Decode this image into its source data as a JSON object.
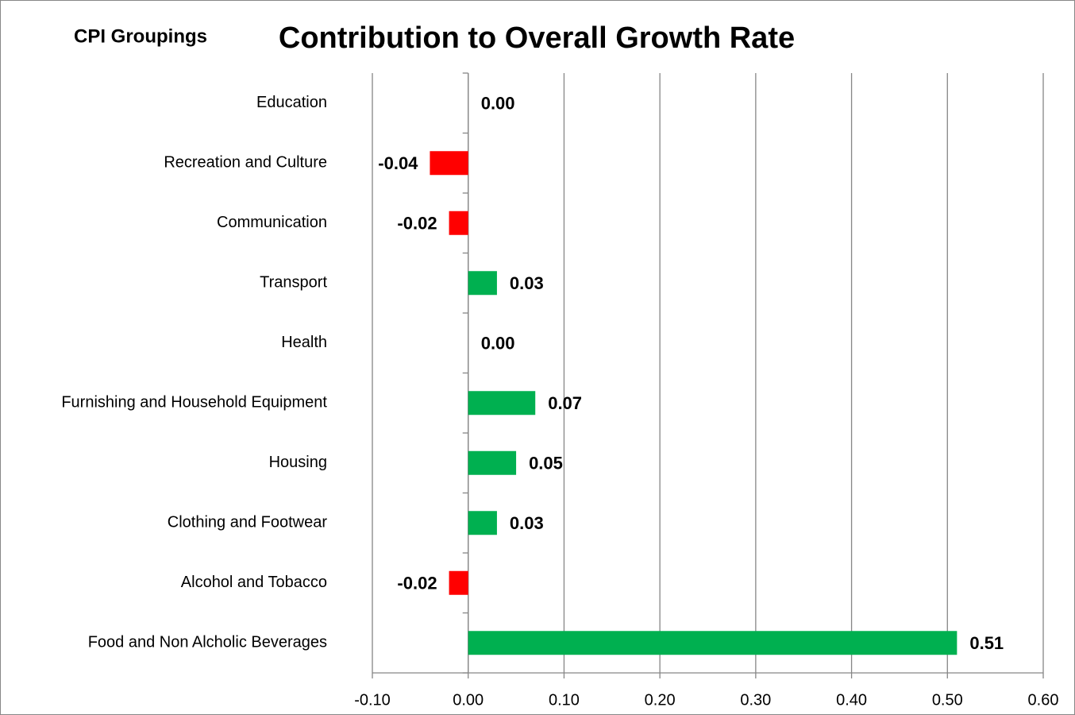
{
  "chart_data": {
    "type": "hbar",
    "title": "Contribution to Overall Growth Rate",
    "y_axis_title": "CPI Groupings",
    "categories": [
      "Education",
      "Recreation and Culture",
      "Communication",
      "Transport",
      "Health",
      "Furnishing and Household Equipment",
      "Housing",
      "Clothing and Footwear",
      "Alcohol and Tobacco",
      "Food and Non Alcholic Beverages"
    ],
    "values": [
      0.0,
      -0.04,
      -0.02,
      0.03,
      0.0,
      0.07,
      0.05,
      0.03,
      -0.02,
      0.51
    ],
    "value_labels": [
      "0.00",
      "-0.04",
      "-0.02",
      "0.03",
      "0.00",
      "0.07",
      "0.05",
      "0.03",
      "-0.02",
      "0.51"
    ],
    "positive_color": "#00b050",
    "negative_color": "#ff0000",
    "xlim": [
      -0.1,
      0.6
    ],
    "xticks": [
      {
        "value": -0.1,
        "label": "-0.10"
      },
      {
        "value": 0,
        "label": "0.00"
      },
      {
        "value": 0.1,
        "label": "0.10"
      },
      {
        "value": 0.2,
        "label": "0.20"
      },
      {
        "value": 0.3,
        "label": "0.30"
      },
      {
        "value": 0.4,
        "label": "0.40"
      },
      {
        "value": 0.5,
        "label": "0.50"
      },
      {
        "value": 0.6,
        "label": "0.60"
      }
    ],
    "grid": true
  }
}
